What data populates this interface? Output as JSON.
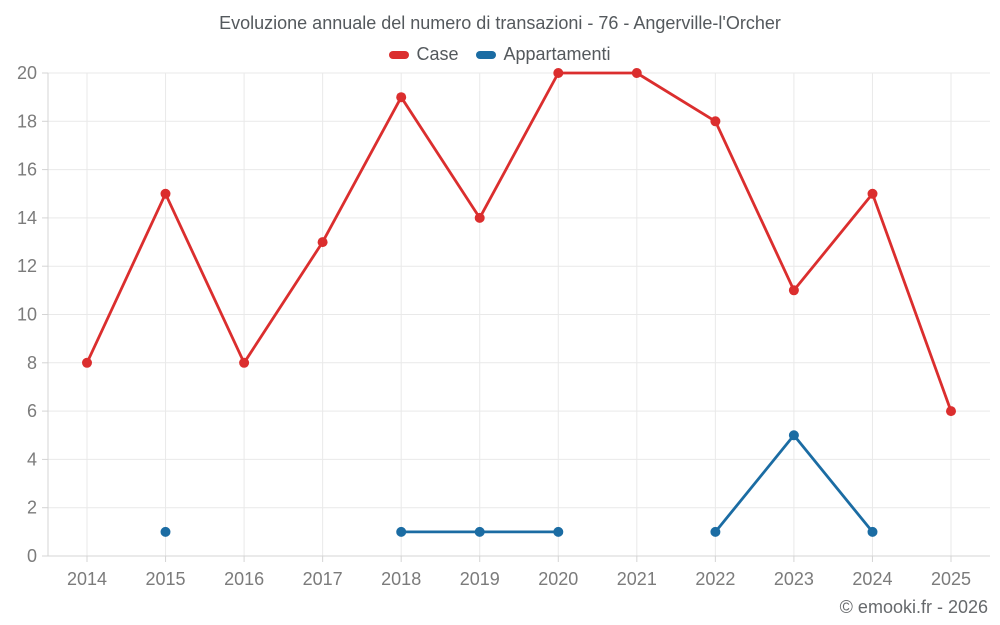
{
  "title": "Evoluzione annuale del numero di transazioni - 76 - Angerville-l'Orcher",
  "legend": {
    "items": [
      {
        "label": "Case",
        "color": "#db2e2e"
      },
      {
        "label": "Appartamenti",
        "color": "#1b6ca3"
      }
    ]
  },
  "footer": {
    "copyright": "© emooki.fr - 2026"
  },
  "chart_data": {
    "type": "line",
    "title": "Evoluzione annuale del numero di transazioni - 76 - Angerville-l'Orcher",
    "categories": [
      "2014",
      "2015",
      "2016",
      "2017",
      "2018",
      "2019",
      "2020",
      "2021",
      "2022",
      "2023",
      "2024",
      "2025"
    ],
    "series": [
      {
        "name": "Case",
        "color": "#db2e2e",
        "values": [
          8,
          15,
          8,
          13,
          19,
          14,
          20,
          20,
          18,
          11,
          15,
          6
        ]
      },
      {
        "name": "Appartamenti",
        "color": "#1b6ca3",
        "values": [
          null,
          1,
          null,
          null,
          1,
          1,
          1,
          null,
          1,
          5,
          1,
          null
        ]
      }
    ],
    "xlabel": "",
    "ylabel": "",
    "ylim": [
      0,
      20
    ],
    "ytick_step": 2,
    "grid": true,
    "legend_position": "top",
    "marker": "circle"
  },
  "colors": {
    "background": "#ffffff",
    "grid": "#e9e9e9",
    "axis": "#d4d4d4",
    "tick": "#d4d4d4",
    "tick_label": "#7b7b7b",
    "title_text": "#54595d",
    "footer_text": "#66696c"
  }
}
